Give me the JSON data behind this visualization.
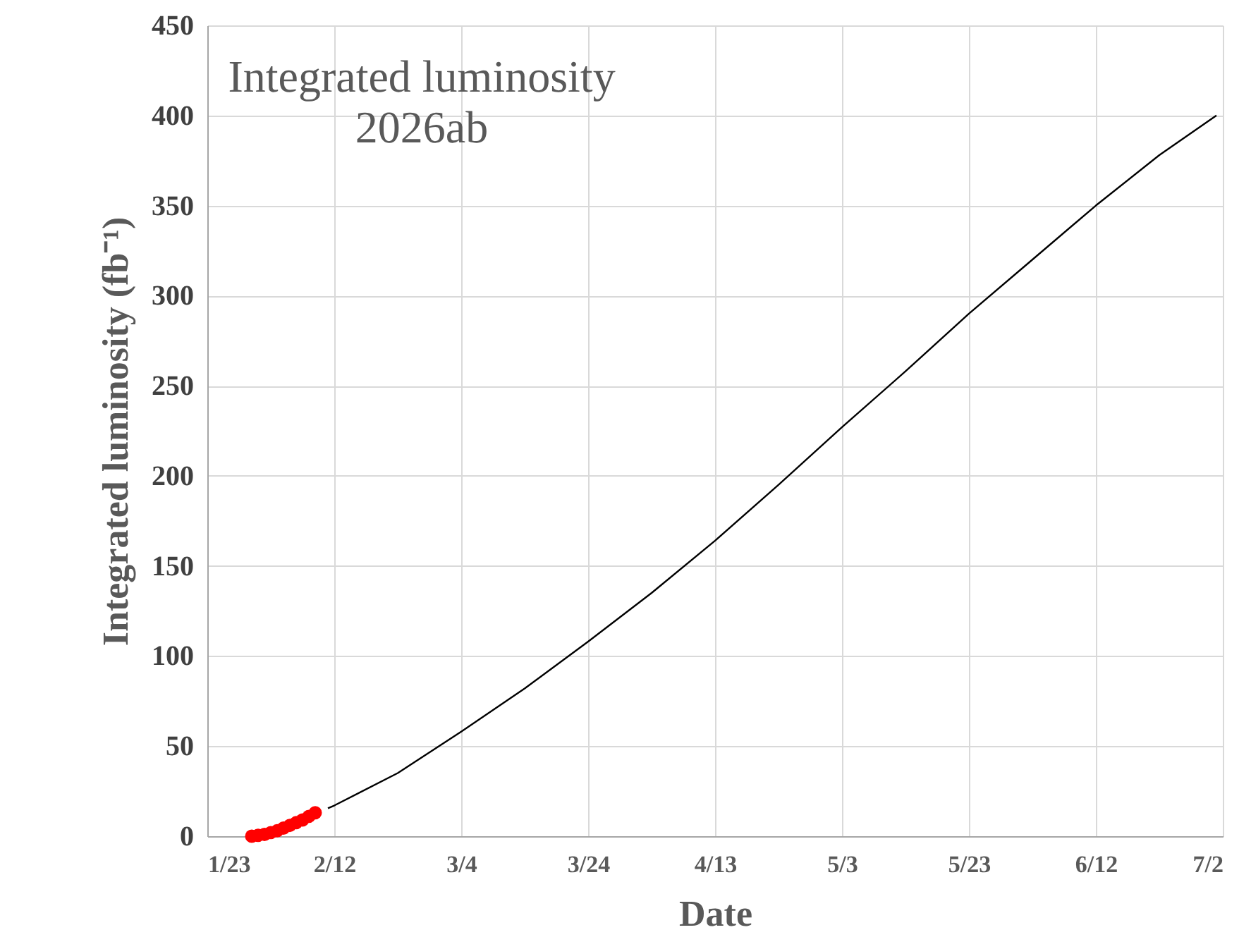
{
  "chart_data": {
    "type": "line",
    "title": "Integrated luminosity",
    "subtitle": "2026ab",
    "xlabel": "Date",
    "ylabel": "Integrated luminosity (fb⁻¹)",
    "xlim": [
      "--01-23",
      "--07-02"
    ],
    "xticks": [
      {
        "value": "--01-23",
        "label": "1/23"
      },
      {
        "value": "--02-12",
        "label": "2/12"
      },
      {
        "value": "--03-04",
        "label": "3/4"
      },
      {
        "value": "--03-24",
        "label": "3/24"
      },
      {
        "value": "--04-13",
        "label": "4/13"
      },
      {
        "value": "--05-03",
        "label": "5/3"
      },
      {
        "value": "--05-23",
        "label": "5/23"
      },
      {
        "value": "--06-12",
        "label": "6/12"
      },
      {
        "value": "--07-02",
        "label": "7/2"
      }
    ],
    "ylim": [
      0,
      450
    ],
    "yticks": [
      0,
      50,
      100,
      150,
      200,
      250,
      300,
      350,
      400,
      450
    ],
    "grid": true,
    "series": [
      {
        "type": "line",
        "color": "#000000",
        "marker": "none",
        "x": [
          "--02-11",
          "--02-12",
          "--02-22",
          "--03-04",
          "--03-14",
          "--03-24",
          "--04-03",
          "--04-13",
          "--04-23",
          "--05-03",
          "--05-13",
          "--05-23",
          "--06-02",
          "--06-12",
          "--06-22",
          "--07-01"
        ],
        "values": [
          15.5,
          17,
          35,
          58,
          82,
          108,
          135,
          164,
          195,
          227,
          258,
          290,
          320,
          350,
          378,
          400
        ]
      },
      {
        "type": "scatter",
        "color": "#ff0000",
        "marker": "circle",
        "x": [
          "--01-30",
          "--01-31",
          "--02-01",
          "--02-02",
          "--02-03",
          "--02-04",
          "--02-05",
          "--02-06",
          "--02-07",
          "--02-08",
          "--02-09"
        ],
        "values": [
          0,
          0.5,
          1,
          2,
          3,
          4.5,
          6,
          7.5,
          9,
          11,
          13
        ]
      }
    ]
  }
}
